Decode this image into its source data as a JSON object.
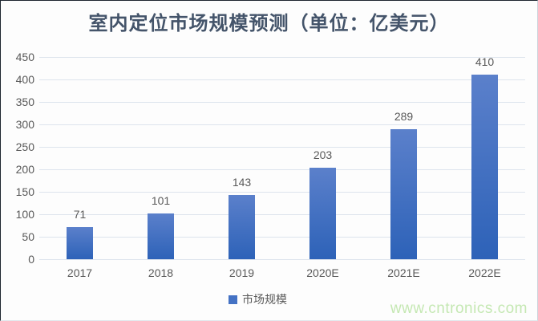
{
  "chart_data": {
    "type": "bar",
    "title": "室内定位市场规模预测（单位：亿美元）",
    "categories": [
      "2017",
      "2018",
      "2019",
      "2020E",
      "2021E",
      "2022E"
    ],
    "series": [
      {
        "name": "市场规模",
        "values": [
          71,
          101,
          143,
          203,
          289,
          410
        ]
      }
    ],
    "ylim": [
      0,
      450
    ],
    "ytick_step": 50,
    "grid": true,
    "legend_position": "bottom",
    "colors": {
      "bar_gradient_top": "#5b80cb",
      "bar_gradient_bottom": "#2d62b8",
      "legend_marker": "#4472c4",
      "gridline": "#dde4ed",
      "axis_text": "#595959",
      "title_text": "#44546a"
    }
  },
  "watermark": {
    "text": "www.cntronics.com",
    "color": "#c5e8b3"
  }
}
